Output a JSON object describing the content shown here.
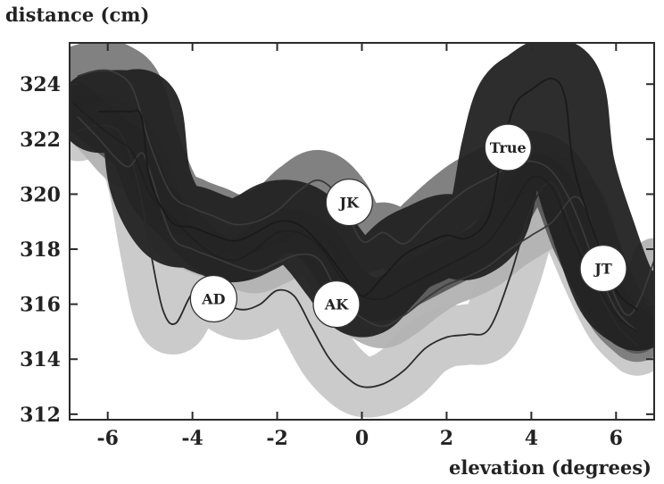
{
  "chart_data": {
    "type": "line",
    "title": "",
    "xlabel": "elevation (degrees)",
    "ylabel": "distance (cm)",
    "xlim": [
      -6.9,
      6.9
    ],
    "ylim": [
      311.8,
      325.5
    ],
    "xticks": [
      -6,
      -4,
      -2,
      0,
      2,
      4,
      6
    ],
    "yticks": [
      312,
      314,
      316,
      318,
      320,
      322,
      324
    ],
    "grid": false,
    "series": [
      {
        "name": "True",
        "band_color": "#222222",
        "band_width": 3.0,
        "line_color": "#1a1a1a",
        "x": [
          -6.2,
          -5.5,
          -5.2,
          -5.0,
          -4.5,
          -4.0,
          -3.5,
          -3.0,
          -2.5,
          -2.0,
          -1.5,
          -1.0,
          -0.5,
          0.0,
          0.5,
          1.0,
          1.5,
          2.0,
          2.5,
          3.0,
          3.3,
          3.6,
          4.0,
          4.5,
          4.8,
          5.0,
          5.5,
          6.0,
          6.5
        ],
        "y": [
          323.0,
          323.0,
          322.8,
          320.5,
          319.0,
          318.8,
          318.5,
          318.3,
          318.6,
          319.0,
          318.9,
          318.2,
          317.2,
          316.3,
          317.0,
          317.8,
          318.2,
          318.5,
          318.4,
          319.2,
          321.5,
          323.2,
          323.8,
          324.2,
          323.5,
          321.0,
          318.5,
          316.5,
          315.8
        ]
      },
      {
        "name": "JK",
        "band_color": "#7a7a7a",
        "band_width": 2.2,
        "line_color": "#3a3a3a",
        "x": [
          -6.7,
          -6.2,
          -5.8,
          -5.4,
          -5.0,
          -4.5,
          -4.0,
          -3.5,
          -3.0,
          -2.5,
          -2.0,
          -1.5,
          -1.0,
          -0.5,
          0.0,
          0.5,
          1.0,
          1.5,
          2.0,
          2.5,
          3.0,
          3.5,
          4.0,
          4.5,
          5.0,
          5.5,
          6.0,
          6.5
        ],
        "y": [
          324.3,
          324.5,
          324.4,
          323.8,
          321.8,
          320.0,
          319.5,
          319.2,
          318.9,
          319.0,
          319.4,
          320.1,
          320.5,
          319.8,
          318.3,
          318.6,
          318.2,
          318.9,
          319.6,
          320.2,
          320.6,
          321.0,
          321.2,
          320.8,
          319.5,
          317.5,
          315.8,
          315.0
        ]
      },
      {
        "name": "AK",
        "band_color": "#5a5a5a",
        "band_width": 1.6,
        "line_color": "#1f1f1f",
        "x": [
          -6.8,
          -6.3,
          -5.8,
          -5.4,
          -5.0,
          -4.5,
          -4.0,
          -3.5,
          -3.0,
          -2.5,
          -2.0,
          -1.5,
          -1.0,
          -0.5,
          0.0,
          0.5,
          1.0,
          1.5,
          2.0,
          2.5,
          3.0,
          3.5,
          4.0,
          4.5,
          5.0,
          5.5,
          6.0,
          6.5
        ],
        "y": [
          323.3,
          322.6,
          322.0,
          321.5,
          320.0,
          319.2,
          318.4,
          317.8,
          317.6,
          318.0,
          318.6,
          318.6,
          318.1,
          317.0,
          316.3,
          316.2,
          316.6,
          317.0,
          317.4,
          317.8,
          318.3,
          319.4,
          320.6,
          320.2,
          318.3,
          316.8,
          315.6,
          315.0
        ]
      },
      {
        "name": "AD",
        "band_color": "#c8c8c8",
        "band_width": 2.2,
        "line_color": "#2a2a2a",
        "x": [
          -6.7,
          -6.2,
          -5.7,
          -5.3,
          -5.0,
          -4.7,
          -4.4,
          -4.0,
          -3.6,
          -3.2,
          -2.8,
          -2.4,
          -2.0,
          -1.6,
          -1.2,
          -0.8,
          -0.4,
          0.0,
          0.5,
          1.0,
          1.5,
          2.0,
          2.5,
          3.0,
          3.5,
          4.0,
          4.5,
          5.0,
          5.5,
          6.0,
          6.5
        ],
        "y": [
          322.3,
          322.5,
          322.2,
          320.5,
          318.0,
          315.8,
          315.3,
          316.4,
          316.5,
          316.0,
          315.8,
          316.0,
          316.5,
          316.3,
          315.2,
          314.1,
          313.4,
          313.0,
          313.1,
          313.6,
          314.4,
          314.8,
          314.9,
          315.1,
          317.0,
          319.5,
          320.4,
          318.6,
          316.8,
          315.3,
          314.5
        ]
      },
      {
        "name": "JT",
        "band_color": "#b2b2b2",
        "band_width": 1.6,
        "line_color": "#3a3a3a",
        "x": [
          -6.7,
          -6.2,
          -5.8,
          -5.5,
          -5.2,
          -5.0,
          -4.5,
          -4.0,
          -3.5,
          -3.0,
          -2.5,
          -2.0,
          -1.5,
          -1.0,
          -0.5,
          0.0,
          0.5,
          1.0,
          1.5,
          2.0,
          2.5,
          3.0,
          3.5,
          4.0,
          4.5,
          5.0,
          5.3,
          5.6,
          6.0,
          6.3,
          6.6,
          6.9
        ],
        "y": [
          322.8,
          322.0,
          321.3,
          321.0,
          321.5,
          320.8,
          318.5,
          318.0,
          317.7,
          317.4,
          317.2,
          317.5,
          317.8,
          317.6,
          316.2,
          315.5,
          315.2,
          315.6,
          316.2,
          316.7,
          317.0,
          317.4,
          318.0,
          318.5,
          319.0,
          319.9,
          319.4,
          318.0,
          316.2,
          315.6,
          316.3,
          317.6
        ]
      }
    ],
    "annotations": [
      {
        "text": "True",
        "x": 3.45,
        "y": 321.7
      },
      {
        "text": "JK",
        "x": -0.3,
        "y": 319.7
      },
      {
        "text": "AK",
        "x": -0.6,
        "y": 316.0
      },
      {
        "text": "AD",
        "x": -3.5,
        "y": 316.2
      },
      {
        "text": "JT",
        "x": 5.7,
        "y": 317.3
      }
    ]
  }
}
